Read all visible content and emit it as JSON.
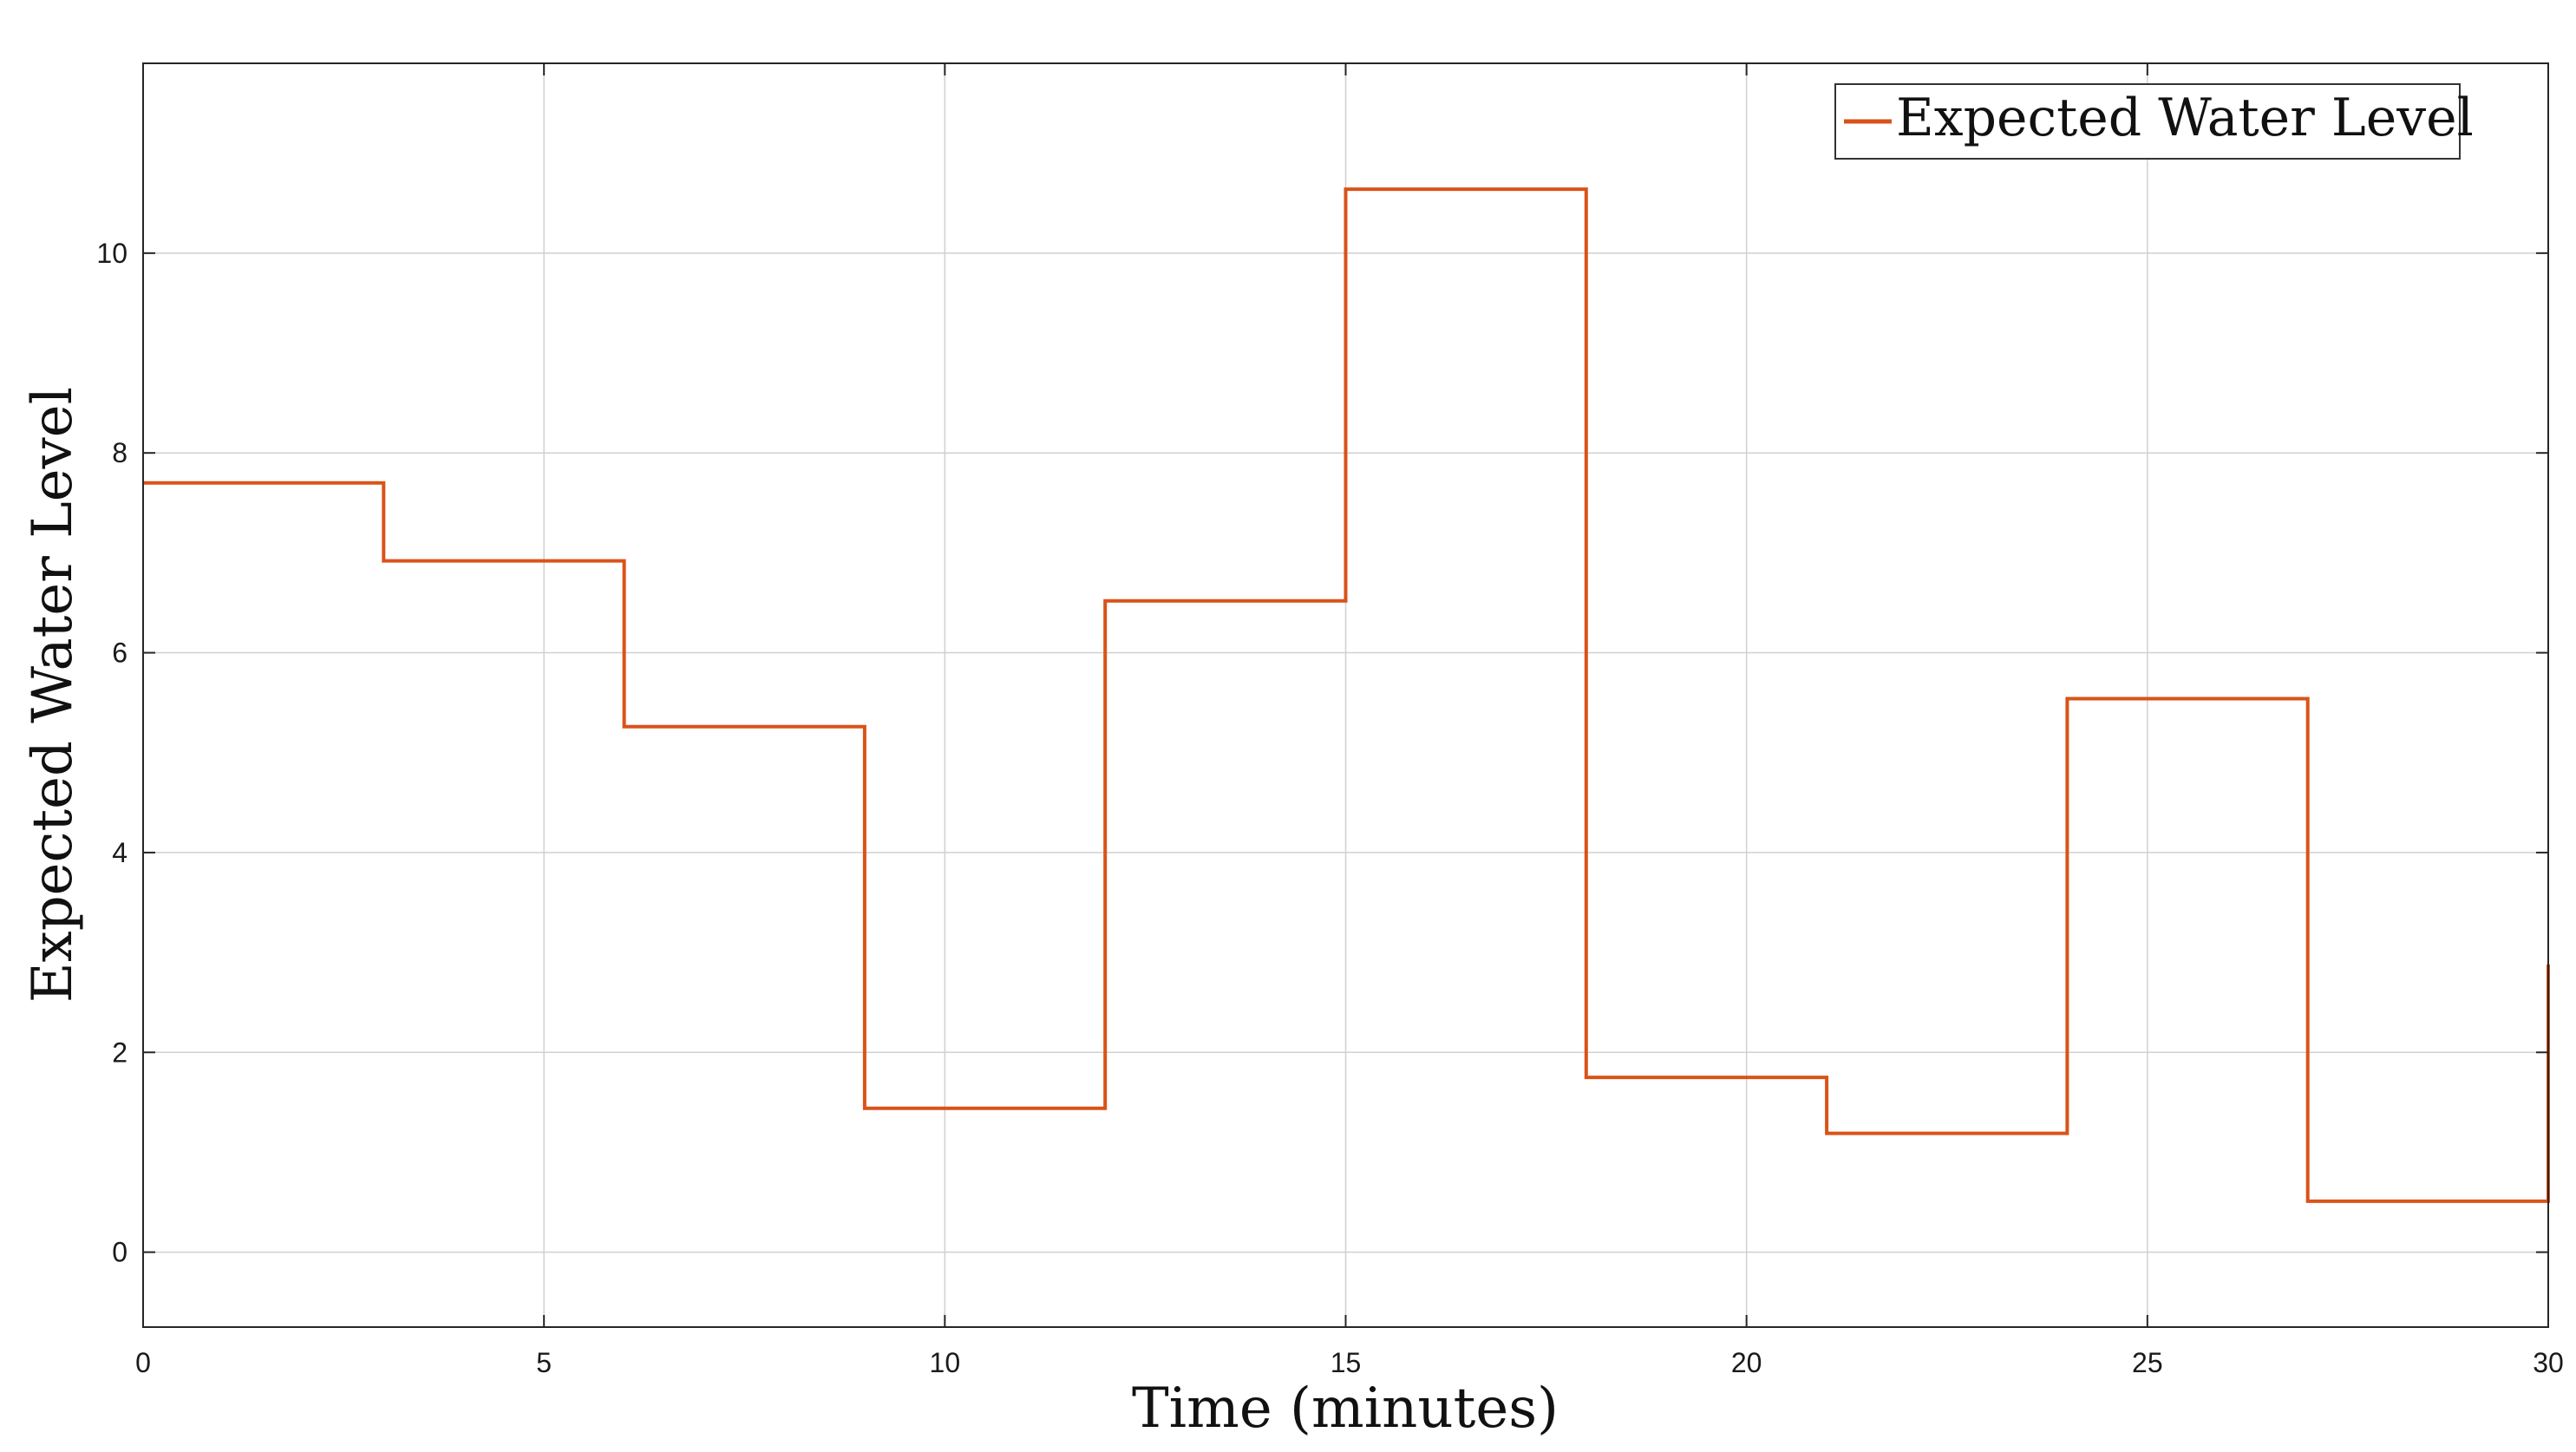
{
  "chart_data": {
    "type": "line",
    "style": "step",
    "title": "",
    "xlabel": "Time (minutes)",
    "ylabel": "Expected Water Level",
    "xlim": [
      0,
      30
    ],
    "ylim": [
      -0.75,
      11.9
    ],
    "xticks": [
      0,
      5,
      10,
      15,
      20,
      25,
      30
    ],
    "yticks": [
      0,
      2,
      4,
      6,
      8,
      10
    ],
    "grid": true,
    "legend_position": "top-right",
    "series": [
      {
        "name": "Expected Water Level",
        "color": "#D95319",
        "x": [
          0,
          3,
          3,
          6,
          6,
          9,
          9,
          12,
          12,
          15,
          15,
          18,
          18,
          21,
          21,
          24,
          24,
          27,
          27,
          30,
          30
        ],
        "y": [
          7.7,
          7.7,
          6.92,
          6.92,
          5.26,
          5.26,
          1.44,
          1.44,
          6.52,
          6.52,
          10.64,
          10.64,
          1.75,
          1.75,
          1.19,
          1.19,
          5.54,
          5.54,
          0.51,
          0.51,
          2.88
        ]
      }
    ]
  }
}
